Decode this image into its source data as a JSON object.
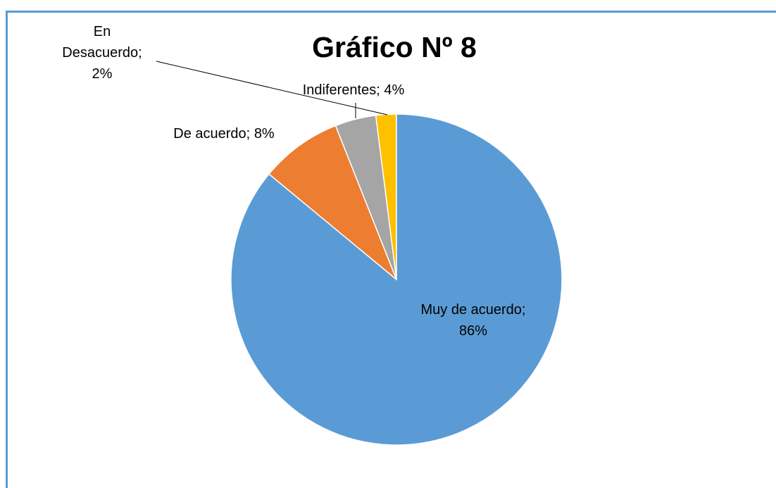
{
  "chart_data": {
    "type": "pie",
    "title": "Gráfico Nº 8",
    "categories": [
      "Muy de acuerdo;",
      "De acuerdo;",
      "Indiferentes;",
      "En Desacuerdo;"
    ],
    "values": [
      86,
      8,
      4,
      2
    ],
    "value_labels": [
      "86%",
      "8%",
      "4%",
      "2%"
    ],
    "colors": [
      "#5b9bd5",
      "#ed7d31",
      "#a5a5a5",
      "#ffc000"
    ]
  }
}
